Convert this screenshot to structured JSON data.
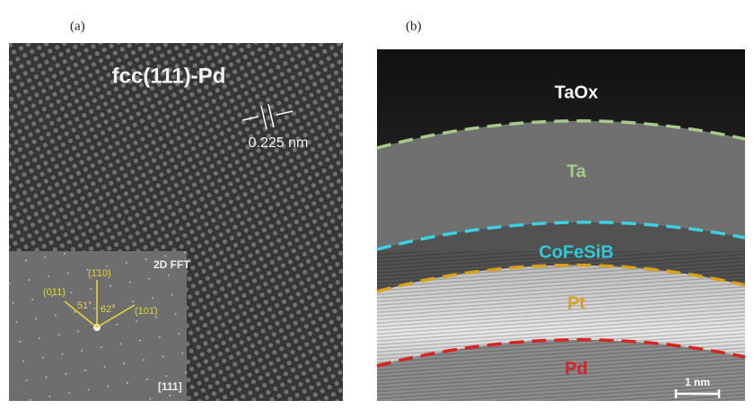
{
  "panel_a": {
    "label": "(a)",
    "title": "fcc(111)-Pd",
    "spacing": "0.225 nm",
    "inset": {
      "title": "2D FFT",
      "zone_axis": "[111]",
      "spots": [
        "(1̄10)",
        "(011)",
        "(101̄)"
      ],
      "angles": [
        "51°",
        "62°"
      ]
    }
  },
  "panel_b": {
    "label": "(b)",
    "layers": [
      "TaOx",
      "Ta",
      "CoFeSiB",
      "Pt",
      "Pd"
    ],
    "scale_bar": "1 nm"
  }
}
